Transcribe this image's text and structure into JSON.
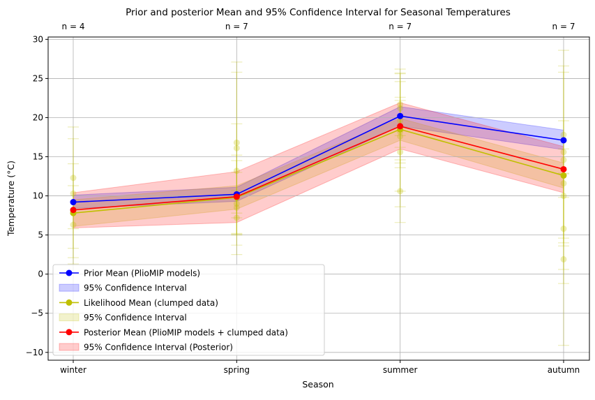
{
  "chart_data": {
    "type": "line",
    "title": "Prior and posterior Mean and 95% Confidence Interval for Seasonal Temperatures",
    "xlabel": "Season",
    "ylabel": "Temperature (°C)",
    "categories": [
      "winter",
      "spring",
      "summer",
      "autumn"
    ],
    "counts": [
      "n = 4",
      "n = 7",
      "n = 7",
      "n = 7"
    ],
    "ylim": [
      -11,
      30.3
    ],
    "yticks": [
      -10,
      -5,
      0,
      5,
      10,
      15,
      20,
      25,
      30
    ],
    "ytick_labels": [
      "−10",
      "−5",
      "0",
      "5",
      "10",
      "15",
      "20",
      "25",
      "30"
    ],
    "grid": true,
    "legend_position": "lower-left",
    "series": [
      {
        "key": "prior",
        "name": "Prior Mean (PlioMIP models)",
        "color": "#0000ff",
        "values": [
          9.2,
          10.2,
          20.2,
          17.1
        ],
        "ci_name": "95% Confidence Interval",
        "ci_lower": [
          8.4,
          9.3,
          18.9,
          15.9
        ],
        "ci_upper": [
          10.1,
          11.1,
          21.4,
          18.4
        ]
      },
      {
        "key": "likelihood",
        "name": "Likelihood Mean (clumped data)",
        "color": "#bfbf00",
        "values": [
          7.8,
          9.8,
          18.5,
          12.6
        ],
        "ci_name": "95% Confidence Interval",
        "ci_lower": [
          6.1,
          8.3,
          17.1,
          11.0
        ],
        "ci_upper": [
          9.5,
          11.3,
          19.9,
          14.2
        ]
      },
      {
        "key": "posterior",
        "name": "Posterior Mean (PlioMIP models + clumped data)",
        "color": "#ff0000",
        "values": [
          8.2,
          9.9,
          18.9,
          13.4
        ],
        "ci_name": "95% Confidence Interval (Posterior)",
        "ci_lower": [
          5.9,
          6.6,
          16.0,
          10.4
        ],
        "ci_upper": [
          10.4,
          13.1,
          21.9,
          16.3
        ]
      }
    ],
    "samples": [
      {
        "x": 0,
        "values": [
          12.3,
          10.3,
          8.1,
          6.3
        ],
        "err": [
          6.5,
          7,
          6,
          5
        ]
      },
      {
        "x": 1,
        "values": [
          16.8,
          16.1,
          13.2,
          10.2,
          9.0,
          8.5,
          7.2
        ],
        "err": [
          9,
          11,
          6,
          5,
          4,
          6,
          3.5
        ]
      },
      {
        "x": 2,
        "values": [
          21.7,
          21.2,
          19.6,
          18.2,
          17.6,
          15.6,
          10.6
        ],
        "err": [
          4,
          5,
          6,
          4,
          7,
          7,
          4
        ]
      },
      {
        "x": 3,
        "values": [
          17.8,
          15.6,
          14.6,
          11.6,
          10.0,
          5.8,
          1.9
        ],
        "err": [
          8,
          11,
          14,
          8,
          6,
          7,
          11
        ]
      }
    ]
  }
}
